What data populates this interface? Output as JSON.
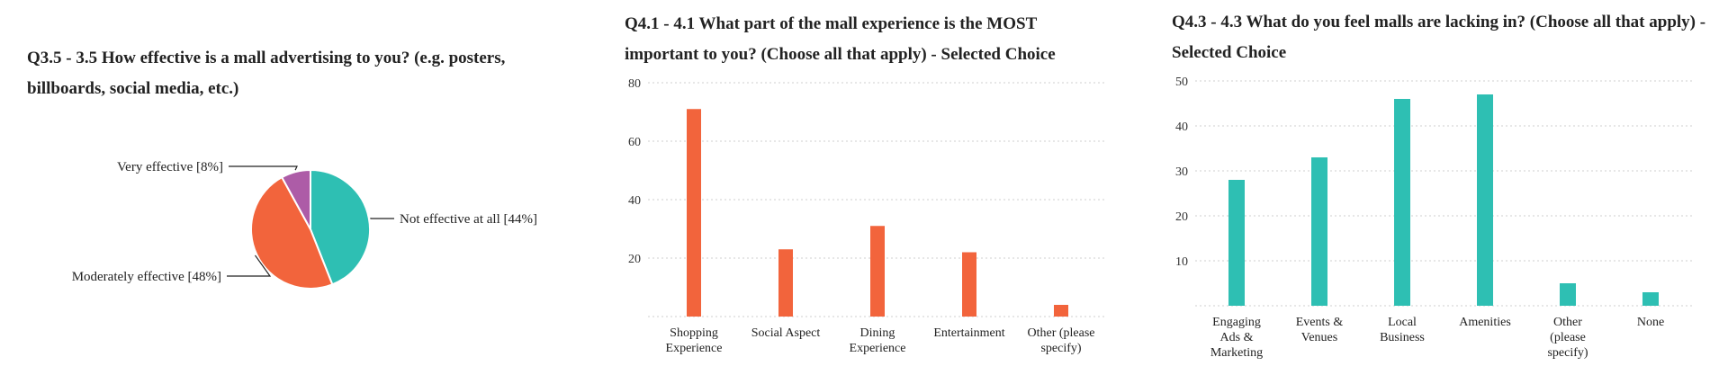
{
  "chart_data": [
    {
      "type": "pie",
      "title": "Q3.5 - 3.5 How effective is a mall advertising to you? (e.g. posters, billboards, social media, etc.)",
      "slices": [
        {
          "label": "Not effective at all [44%]",
          "value": 44,
          "color": "#2ebfb3"
        },
        {
          "label": "Moderately effective [48%]",
          "value": 48,
          "color": "#f2643c"
        },
        {
          "label": "Very effective [8%]",
          "value": 8,
          "color": "#ad5ca7"
        }
      ]
    },
    {
      "type": "bar",
      "title": "Q4.1 - 4.1 What part of the mall experience is the MOST important to you? (Choose all that apply) - Selected Choice",
      "categories": [
        "Shopping Experience",
        "Social Aspect",
        "Dining Experience",
        "Entertainment",
        "Other (please specify)"
      ],
      "values": [
        71,
        23,
        31,
        22,
        4
      ],
      "yticks": [
        20,
        40,
        60,
        80
      ],
      "ylim": [
        0,
        80
      ],
      "color": "#f2643c",
      "grid": true
    },
    {
      "type": "bar",
      "title": "Q4.3 - 4.3 What do you feel malls are lacking in? (Choose all that apply) - Selected Choice",
      "categories": [
        "Engaging Ads & Marketing",
        "Events & Venues",
        "Local Business",
        "Amenities",
        "Other (please specify)",
        "None"
      ],
      "values": [
        28,
        33,
        46,
        47,
        5,
        3
      ],
      "yticks": [
        10,
        20,
        30,
        40,
        50
      ],
      "ylim": [
        0,
        50
      ],
      "color": "#2ebfb3",
      "grid": true
    }
  ]
}
